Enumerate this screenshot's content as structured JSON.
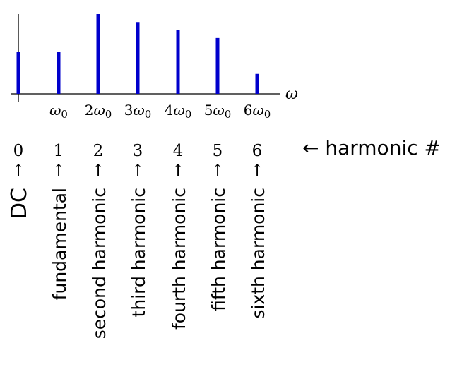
{
  "spectrum": {
    "axis_label": "ω",
    "freq_labels": [
      "",
      "ω0",
      "2ω0",
      "3ω0",
      "4ω0",
      "5ω0",
      "6ω0"
    ],
    "amplitudes": [
      0.53,
      0.53,
      1.0,
      0.9,
      0.8,
      0.7,
      0.25
    ],
    "ylim": [
      0,
      1.0
    ],
    "line_color": "#0000cc"
  },
  "harmonic_numbers": [
    "0",
    "1",
    "2",
    "3",
    "4",
    "5",
    "6"
  ],
  "harmonic_number_arrow_label": "← harmonic #",
  "up_arrow": "↑",
  "harmonic_names": [
    "DC",
    "fundamental",
    "second harmonic",
    "third harmonic",
    "fourth harmonic",
    "fifth harmonic",
    "sixth harmonic"
  ]
}
